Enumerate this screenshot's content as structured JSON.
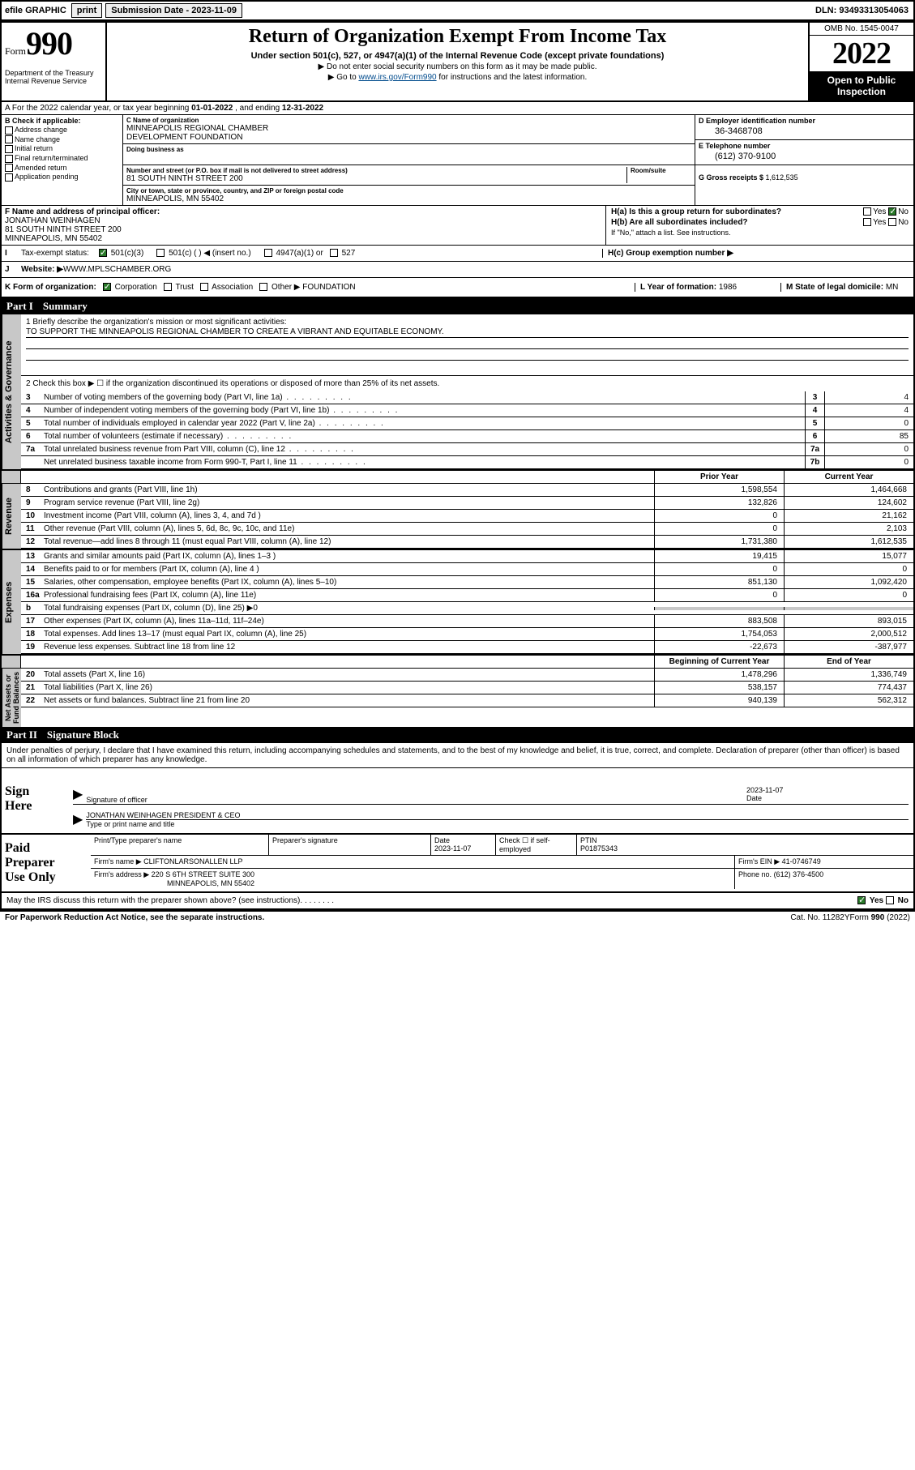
{
  "topbar": {
    "efile": "efile GRAPHIC",
    "print": "print",
    "subdate_lbl": "Submission Date - ",
    "subdate": "2023-11-09",
    "dln_lbl": "DLN: ",
    "dln": "93493313054063"
  },
  "header": {
    "form_f": "Form",
    "form_n": "990",
    "dept": "Department of the Treasury\nInternal Revenue Service",
    "title": "Return of Organization Exempt From Income Tax",
    "sub": "Under section 501(c), 527, or 4947(a)(1) of the Internal Revenue Code (except private foundations)",
    "note1": "▶ Do not enter social security numbers on this form as it may be made public.",
    "note2_pre": "▶ Go to ",
    "note2_link": "www.irs.gov/Form990",
    "note2_post": " for instructions and the latest information.",
    "omb": "OMB No. 1545-0047",
    "year": "2022",
    "inspect": "Open to Public Inspection"
  },
  "rowA": {
    "pre": "A For the 2022 calendar year, or tax year beginning ",
    "begin": "01-01-2022",
    "mid": "   , and ending ",
    "end": "12-31-2022"
  },
  "colB": {
    "lbl": "B Check if applicable:",
    "items": [
      "Address change",
      "Name change",
      "Initial return",
      "Final return/terminated",
      "Amended return",
      "Application pending"
    ]
  },
  "colC": {
    "name_lbl": "C Name of organization",
    "name": "MINNEAPOLIS REGIONAL CHAMBER\nDEVELOPMENT FOUNDATION",
    "dba_lbl": "Doing business as",
    "dba": "",
    "addr_lbl": "Number and street (or P.O. box if mail is not delivered to street address)",
    "room_lbl": "Room/suite",
    "addr": "81 SOUTH NINTH STREET 200",
    "city_lbl": "City or town, state or province, country, and ZIP or foreign postal code",
    "city": "MINNEAPOLIS, MN  55402"
  },
  "colDE": {
    "d_lbl": "D Employer identification number",
    "d_val": "36-3468708",
    "e_lbl": "E Telephone number",
    "e_val": "(612) 370-9100",
    "g_lbl": "G Gross receipts $ ",
    "g_val": "1,612,535"
  },
  "rowF": {
    "lbl": "F Name and address of principal officer:",
    "name": "JONATHAN WEINHAGEN",
    "addr1": "81 SOUTH NINTH STREET 200",
    "addr2": "MINNEAPOLIS, MN  55402"
  },
  "rowH": {
    "ha": "H(a)  Is this a group return for subordinates?",
    "ha_yes": "Yes",
    "ha_no": "No",
    "hb": "H(b)  Are all subordinates included?",
    "hb_note": "If \"No,\" attach a list. See instructions.",
    "hc": "H(c)  Group exemption number ▶"
  },
  "rowI": {
    "lbl": "Tax-exempt status:",
    "o1": "501(c)(3)",
    "o2": "501(c) (   ) ◀ (insert no.)",
    "o3": "4947(a)(1) or",
    "o4": "527"
  },
  "rowJ": {
    "lbl": "Website: ▶ ",
    "val": "WWW.MPLSCHAMBER.ORG"
  },
  "rowK": {
    "lbl": "K Form of organization:",
    "o1": "Corporation",
    "o2": "Trust",
    "o3": "Association",
    "o4": "Other ▶",
    "o4v": "FOUNDATION",
    "l_lbl": "L Year of formation: ",
    "l_val": "1986",
    "m_lbl": "M State of legal domicile: ",
    "m_val": "MN"
  },
  "parts": {
    "p1": "Part I",
    "p1t": "Summary",
    "p2": "Part II",
    "p2t": "Signature Block"
  },
  "sidelabels": {
    "ag": "Activities & Governance",
    "rev": "Revenue",
    "exp": "Expenses",
    "na": "Net Assets or\nFund Balances"
  },
  "summary": {
    "q1": "1   Briefly describe the organization's mission or most significant activities:",
    "q1a": "TO SUPPORT THE MINNEAPOLIS REGIONAL CHAMBER TO CREATE A VIBRANT AND EQUITABLE ECONOMY.",
    "q2": "2   Check this box ▶ ☐   if the organization discontinued its operations or disposed of more than 25% of its net assets.",
    "lines_ag": [
      {
        "n": "3",
        "t": "Number of voting members of the governing body (Part VI, line 1a)",
        "bn": "3",
        "v": "4"
      },
      {
        "n": "4",
        "t": "Number of independent voting members of the governing body (Part VI, line 1b)",
        "bn": "4",
        "v": "4"
      },
      {
        "n": "5",
        "t": "Total number of individuals employed in calendar year 2022 (Part V, line 2a)",
        "bn": "5",
        "v": "0"
      },
      {
        "n": "6",
        "t": "Total number of volunteers (estimate if necessary)",
        "bn": "6",
        "v": "85"
      },
      {
        "n": "7a",
        "t": "Total unrelated business revenue from Part VIII, column (C), line 12",
        "bn": "7a",
        "v": "0"
      },
      {
        "n": "",
        "t": "Net unrelated business taxable income from Form 990-T, Part I, line 11",
        "bn": "7b",
        "v": "0"
      }
    ],
    "colhdr": {
      "prior": "Prior Year",
      "curr": "Current Year",
      "beg": "Beginning of Current Year",
      "end": "End of Year"
    },
    "lines_rev": [
      {
        "n": "8",
        "t": "Contributions and grants (Part VIII, line 1h)",
        "c1": "1,598,554",
        "c2": "1,464,668"
      },
      {
        "n": "9",
        "t": "Program service revenue (Part VIII, line 2g)",
        "c1": "132,826",
        "c2": "124,602"
      },
      {
        "n": "10",
        "t": "Investment income (Part VIII, column (A), lines 3, 4, and 7d )",
        "c1": "0",
        "c2": "21,162"
      },
      {
        "n": "11",
        "t": "Other revenue (Part VIII, column (A), lines 5, 6d, 8c, 9c, 10c, and 11e)",
        "c1": "0",
        "c2": "2,103"
      },
      {
        "n": "12",
        "t": "Total revenue—add lines 8 through 11 (must equal Part VIII, column (A), line 12)",
        "c1": "1,731,380",
        "c2": "1,612,535"
      }
    ],
    "lines_exp": [
      {
        "n": "13",
        "t": "Grants and similar amounts paid (Part IX, column (A), lines 1–3 )",
        "c1": "19,415",
        "c2": "15,077"
      },
      {
        "n": "14",
        "t": "Benefits paid to or for members (Part IX, column (A), line 4 )",
        "c1": "0",
        "c2": "0"
      },
      {
        "n": "15",
        "t": "Salaries, other compensation, employee benefits (Part IX, column (A), lines 5–10)",
        "c1": "851,130",
        "c2": "1,092,420"
      },
      {
        "n": "16a",
        "t": "Professional fundraising fees (Part IX, column (A), line 11e)",
        "c1": "0",
        "c2": "0"
      },
      {
        "n": "b",
        "t": "Total fundraising expenses (Part IX, column (D), line 25) ▶0",
        "c1": "",
        "c2": "",
        "gray": true
      },
      {
        "n": "17",
        "t": "Other expenses (Part IX, column (A), lines 11a–11d, 11f–24e)",
        "c1": "883,508",
        "c2": "893,015"
      },
      {
        "n": "18",
        "t": "Total expenses. Add lines 13–17 (must equal Part IX, column (A), line 25)",
        "c1": "1,754,053",
        "c2": "2,000,512"
      },
      {
        "n": "19",
        "t": "Revenue less expenses. Subtract line 18 from line 12",
        "c1": "-22,673",
        "c2": "-387,977"
      }
    ],
    "lines_na": [
      {
        "n": "20",
        "t": "Total assets (Part X, line 16)",
        "c1": "1,478,296",
        "c2": "1,336,749"
      },
      {
        "n": "21",
        "t": "Total liabilities (Part X, line 26)",
        "c1": "538,157",
        "c2": "774,437"
      },
      {
        "n": "22",
        "t": "Net assets or fund balances. Subtract line 21 from line 20",
        "c1": "940,139",
        "c2": "562,312"
      }
    ]
  },
  "sig": {
    "decl": "Under penalties of perjury, I declare that I have examined this return, including accompanying schedules and statements, and to the best of my knowledge and belief, it is true, correct, and complete. Declaration of preparer (other than officer) is based on all information of which preparer has any knowledge.",
    "sign_here": "Sign\nHere",
    "sig_lbl": "Signature of officer",
    "date_lbl": "Date",
    "date": "2023-11-07",
    "officer": "JONATHAN WEINHAGEN  PRESIDENT & CEO",
    "officer_lbl": "Type or print name and title"
  },
  "prep": {
    "title": "Paid\nPreparer\nUse Only",
    "r1": {
      "c1": "Print/Type preparer's name",
      "c2": "Preparer's signature",
      "c3": "Date",
      "c3v": "2023-11-07",
      "c4": "Check ☐ if self-employed",
      "c5": "PTIN",
      "c5v": "P01875343"
    },
    "r2": {
      "lbl": "Firm's name      ▶",
      "val": "CLIFTONLARSONALLEN LLP",
      "ein_lbl": "Firm's EIN ▶",
      "ein": "41-0746749"
    },
    "r3": {
      "lbl": "Firm's address ▶",
      "val": "220 S 6TH STREET SUITE 300",
      "ph_lbl": "Phone no.",
      "ph": "(612) 376-4500"
    },
    "r3b": "MINNEAPOLIS, MN  55402"
  },
  "discuss": {
    "q": "May the IRS discuss this return with the preparer shown above? (see instructions)",
    "yes": "Yes",
    "no": "No"
  },
  "footer": {
    "l": "For Paperwork Reduction Act Notice, see the separate instructions.",
    "m": "Cat. No. 11282Y",
    "r": "Form 990 (2022)"
  }
}
